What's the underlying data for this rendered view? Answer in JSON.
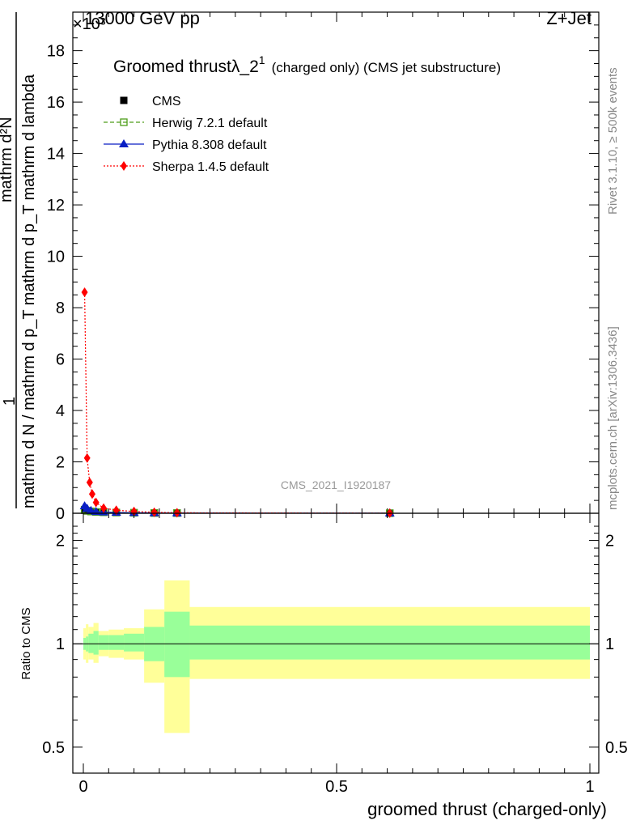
{
  "header": {
    "left": "13000 GeV pp",
    "right": "Z+Jet",
    "exponent": "×10³"
  },
  "side": {
    "rivet": "Rivet 3.1.10, ≥ 500k events",
    "mcplots": "mcplots.cern.ch [arXiv:1306.3436]"
  },
  "watermark": "CMS_2021_I1920187",
  "chart_data": [
    {
      "type": "line",
      "panel": "main",
      "title": "Groomed thrustλ_2¹ (charged only) (CMS jet substructure)",
      "title_main": "Groomed thrustλ_2",
      "title_sup": "1",
      "title_rest": "(charged only) (CMS jet substructure)",
      "xlabel": "groomed thrust (charged-only)",
      "ylabel_numerator": "1",
      "ylabel_denominator": "mathrm d N / mathrm d p_T mathrm d p_T mathrm d lambda",
      "ylabel_top": "mathrm d²N",
      "xlim": [
        0,
        1
      ],
      "ylim": [
        0,
        19.5
      ],
      "y_scale_factor": "×10³",
      "xticks": [
        0,
        0.5,
        1
      ],
      "xtick_labels": [
        "0",
        "0.5",
        "1"
      ],
      "yticks": [
        0,
        2,
        4,
        6,
        8,
        10,
        12,
        14,
        16,
        18
      ],
      "ytick_labels": [
        "0",
        "2",
        "4",
        "6",
        "8",
        "10",
        "12",
        "14",
        "16",
        "18"
      ],
      "legend_position": "top-left",
      "grid": false,
      "series": [
        {
          "name": "CMS",
          "color": "#000000",
          "marker": "square",
          "x": [
            0.0025,
            0.0075,
            0.015,
            0.025,
            0.04,
            0.065,
            0.1,
            0.14,
            0.185,
            0.605
          ],
          "y": [
            0.12,
            0.09,
            0.07,
            0.05,
            0.04,
            0.03,
            0.02,
            0.012,
            0.008,
            0.003
          ]
        },
        {
          "name": "Herwig 7.2.1 default",
          "color": "#4d9d1a",
          "marker": "open-square",
          "dash": "dashed",
          "x": [
            0.0025,
            0.0075,
            0.015,
            0.025,
            0.04,
            0.065,
            0.1,
            0.14,
            0.185,
            0.605
          ],
          "y": [
            0.14,
            0.1,
            0.07,
            0.05,
            0.04,
            0.03,
            0.02,
            0.012,
            0.008,
            0.003
          ]
        },
        {
          "name": "Pythia 8.308 default",
          "color": "#0a1fc4",
          "marker": "triangle",
          "dash": "solid",
          "x": [
            0.0025,
            0.0075,
            0.015,
            0.025,
            0.04,
            0.065,
            0.1,
            0.14,
            0.185,
            0.605
          ],
          "y": [
            0.28,
            0.18,
            0.1,
            0.06,
            0.045,
            0.03,
            0.02,
            0.012,
            0.008,
            0.003
          ]
        },
        {
          "name": "Sherpa 1.4.5 default",
          "color": "#ff0000",
          "marker": "diamond",
          "dash": "dotted",
          "x": [
            0.0025,
            0.0075,
            0.0125,
            0.0175,
            0.025,
            0.04,
            0.065,
            0.1,
            0.14,
            0.185,
            0.605
          ],
          "y": [
            8.6,
            2.15,
            1.2,
            0.75,
            0.42,
            0.2,
            0.12,
            0.07,
            0.04,
            0.02,
            0.004
          ]
        }
      ]
    },
    {
      "type": "area",
      "panel": "ratio",
      "ylabel": "Ratio to CMS",
      "yscale": "log",
      "xlim": [
        0,
        1
      ],
      "ylim": [
        0.42,
        2.4
      ],
      "yticks": [
        0.5,
        1,
        2
      ],
      "ytick_labels": [
        "0.5",
        "1",
        "2"
      ],
      "reference": 1,
      "bins": [
        {
          "x0": 0.0,
          "x1": 0.005,
          "inner": [
            0.96,
            1.04
          ],
          "outer": [
            0.9,
            1.11
          ]
        },
        {
          "x0": 0.005,
          "x1": 0.01,
          "inner": [
            0.95,
            1.05
          ],
          "outer": [
            0.88,
            1.14
          ]
        },
        {
          "x0": 0.01,
          "x1": 0.02,
          "inner": [
            0.94,
            1.07
          ],
          "outer": [
            0.9,
            1.12
          ]
        },
        {
          "x0": 0.02,
          "x1": 0.03,
          "inner": [
            0.93,
            1.09
          ],
          "outer": [
            0.88,
            1.15
          ]
        },
        {
          "x0": 0.03,
          "x1": 0.05,
          "inner": [
            0.96,
            1.06
          ],
          "outer": [
            0.92,
            1.09
          ]
        },
        {
          "x0": 0.05,
          "x1": 0.08,
          "inner": [
            0.96,
            1.06
          ],
          "outer": [
            0.91,
            1.1
          ]
        },
        {
          "x0": 0.08,
          "x1": 0.12,
          "inner": [
            0.95,
            1.07
          ],
          "outer": [
            0.9,
            1.11
          ]
        },
        {
          "x0": 0.12,
          "x1": 0.16,
          "inner": [
            0.89,
            1.12
          ],
          "outer": [
            0.77,
            1.26
          ]
        },
        {
          "x0": 0.16,
          "x1": 0.21,
          "inner": [
            0.8,
            1.24
          ],
          "outer": [
            0.55,
            1.53
          ]
        },
        {
          "x0": 0.21,
          "x1": 1.0,
          "inner": [
            0.9,
            1.13
          ],
          "outer": [
            0.79,
            1.28
          ]
        }
      ],
      "inner_color": "#99ff99",
      "outer_color": "#ffff99"
    }
  ]
}
